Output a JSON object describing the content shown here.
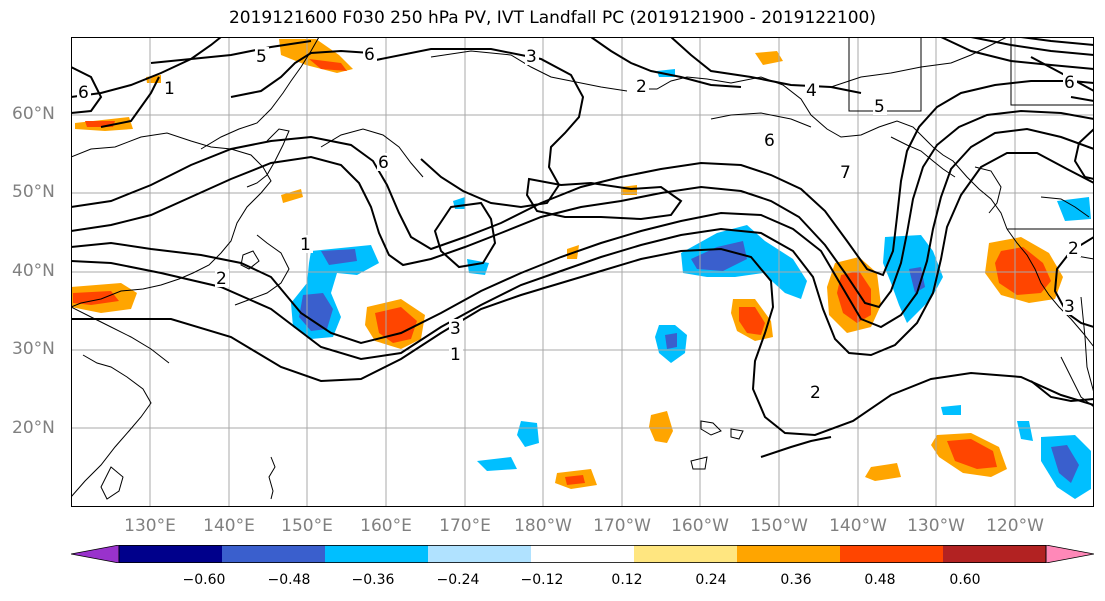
{
  "title": "2019121600 F030 250 hPa PV, IVT Landfall PC (2019121900 - 2019122100)",
  "axes": {
    "lat_labels": [
      "60°N",
      "50°N",
      "40°N",
      "30°N",
      "20°N"
    ],
    "lon_labels": [
      "130°E",
      "140°E",
      "150°E",
      "160°E",
      "170°E",
      "180°W",
      "170°W",
      "160°W",
      "150°W",
      "140°W",
      "130°W",
      "120°W"
    ]
  },
  "contour_labels": [
    "1",
    "2",
    "3",
    "4",
    "5",
    "6",
    "7"
  ],
  "colorbar": {
    "ticks": [
      "−0.60",
      "−0.48",
      "−0.36",
      "−0.24",
      "−0.12",
      "0.12",
      "0.24",
      "0.36",
      "0.48",
      "0.60"
    ],
    "colors": [
      "#9932cc",
      "#00008b",
      "#3a5fcd",
      "#00bfff",
      "#b0e2ff",
      "#ffffff",
      "#ffe680",
      "#ffa500",
      "#ff4500",
      "#b22222",
      "#ff88b8"
    ]
  }
}
